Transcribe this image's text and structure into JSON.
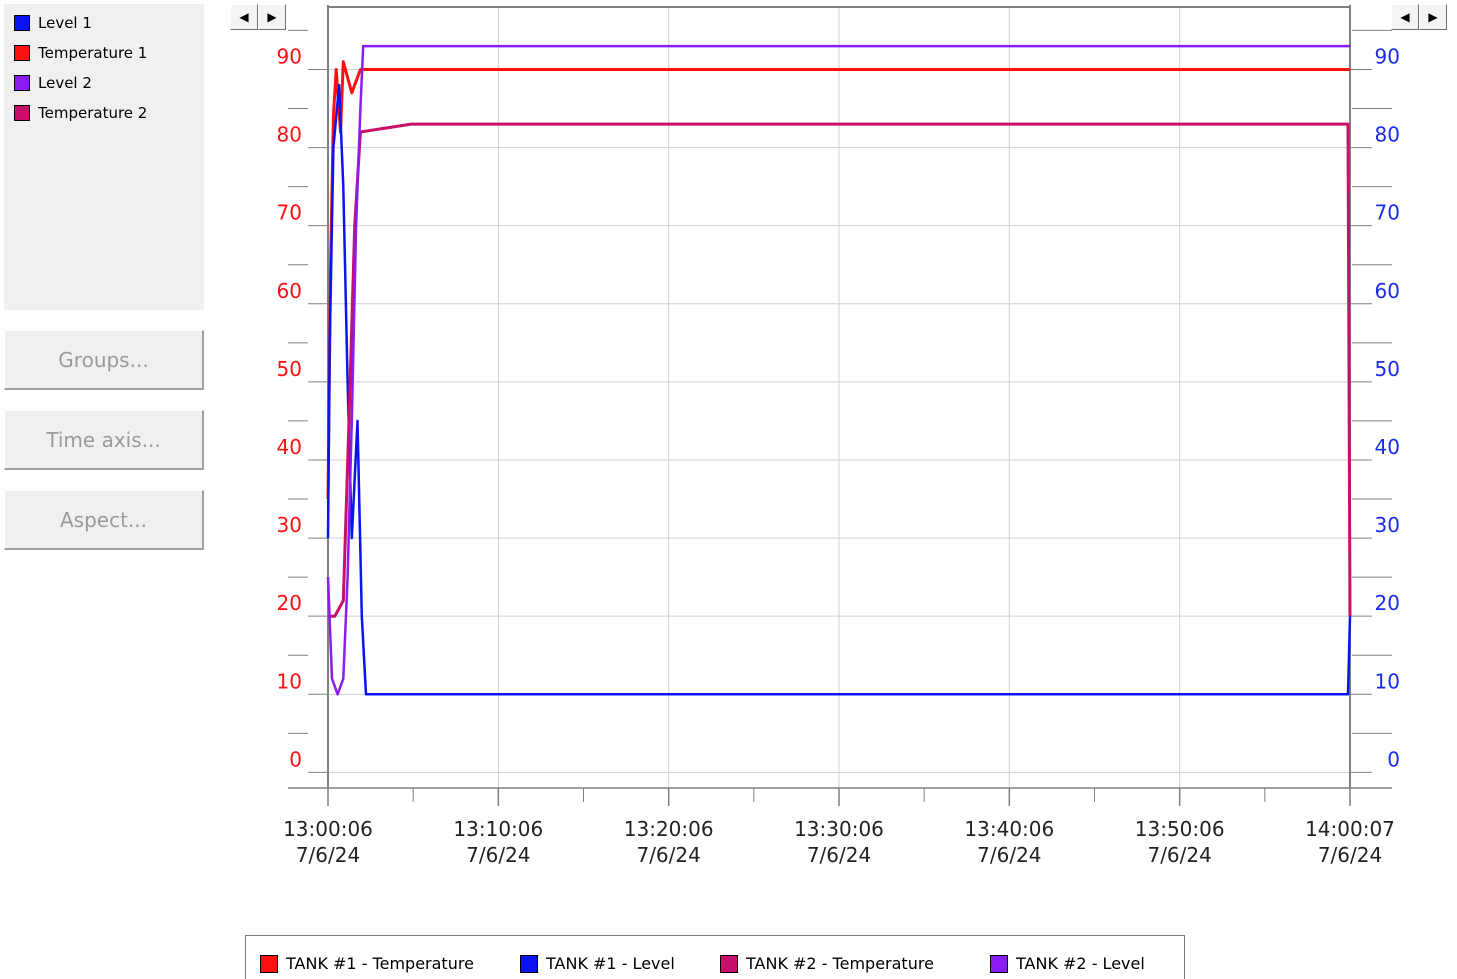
{
  "left_panel": {
    "legend": [
      {
        "label": "Level 1",
        "color": "#0a14f0"
      },
      {
        "label": "Temperature 1",
        "color": "#ff1010"
      },
      {
        "label": "Level 2",
        "color": "#8a1cf0"
      },
      {
        "label": "Temperature 2",
        "color": "#c8106a"
      }
    ],
    "buttons": {
      "groups": "Groups...",
      "time_axis": "Time axis...",
      "aspect": "Aspect..."
    }
  },
  "scroll_buttons": {
    "left": "◀",
    "right": "▶"
  },
  "bottom_legend": [
    {
      "label": "TANK #1 - Temperature",
      "color": "#ff1010"
    },
    {
      "label": "TANK #1 - Level",
      "color": "#0a14f0"
    },
    {
      "label": "TANK #2 - Temperature",
      "color": "#c8106a"
    },
    {
      "label": "TANK #2 - Level",
      "color": "#8a1cf0"
    }
  ],
  "chart_data": {
    "type": "line",
    "grid": true,
    "x_ticks": [
      {
        "time": "13:00:06",
        "date": "7/6/24"
      },
      {
        "time": "13:10:06",
        "date": "7/6/24"
      },
      {
        "time": "13:20:06",
        "date": "7/6/24"
      },
      {
        "time": "13:30:06",
        "date": "7/6/24"
      },
      {
        "time": "13:40:06",
        "date": "7/6/24"
      },
      {
        "time": "13:50:06",
        "date": "7/6/24"
      },
      {
        "time": "14:00:07",
        "date": "7/6/24"
      }
    ],
    "xlim": [
      "13:00:06",
      "14:00:07"
    ],
    "y_left": {
      "ticks": [
        "0",
        "10",
        "20",
        "30",
        "40",
        "50",
        "60",
        "70",
        "80",
        "90"
      ],
      "range": [
        -2,
        98
      ],
      "color": "#ff1010"
    },
    "y_right": {
      "ticks": [
        "0",
        "10",
        "20",
        "30",
        "40",
        "50",
        "60",
        "70",
        "80",
        "90"
      ],
      "range": [
        -2,
        98
      ],
      "color": "#1a2af0"
    },
    "series": [
      {
        "name": "TANK #1 - Temperature",
        "color": "#ff1010",
        "x": [
          "13:00:06",
          "13:00:15",
          "13:00:25",
          "13:00:35",
          "13:00:50",
          "13:01:00",
          "13:01:30",
          "13:02:00",
          "13:05:00",
          "13:15:00",
          "13:25:00",
          "13:35:00",
          "13:45:00",
          "13:55:00",
          "14:00:07"
        ],
        "y": [
          35,
          65,
          84,
          90,
          82,
          91,
          87,
          90,
          90,
          90,
          90,
          90,
          90,
          90,
          90
        ]
      },
      {
        "name": "TANK #1 - Level",
        "color": "#0a14f0",
        "x": [
          "13:00:06",
          "13:00:12",
          "13:00:25",
          "13:00:45",
          "13:01:00",
          "13:01:15",
          "13:01:30",
          "13:01:50",
          "13:02:05",
          "13:02:20",
          "13:05:00",
          "13:15:00",
          "13:25:00",
          "13:35:00",
          "13:45:00",
          "13:55:00",
          "14:00:00",
          "14:00:07"
        ],
        "y": [
          30,
          55,
          80,
          88,
          75,
          50,
          30,
          45,
          20,
          10,
          10,
          10,
          10,
          10,
          10,
          10,
          10,
          20
        ]
      },
      {
        "name": "TANK #2 - Temperature",
        "color": "#c8106a",
        "x": [
          "13:00:06",
          "13:00:30",
          "13:01:00",
          "13:01:20",
          "13:01:40",
          "13:02:00",
          "13:05:00",
          "13:15:00",
          "13:25:00",
          "13:35:00",
          "13:45:00",
          "13:55:00",
          "14:00:00",
          "14:00:07"
        ],
        "y": [
          20,
          20,
          22,
          45,
          70,
          82,
          83,
          83,
          83,
          83,
          83,
          83,
          83,
          20
        ]
      },
      {
        "name": "TANK #2 - Level",
        "color": "#8a1cf0",
        "x": [
          "13:00:06",
          "13:00:20",
          "13:00:40",
          "13:01:00",
          "13:01:15",
          "13:01:30",
          "13:01:45",
          "13:02:00",
          "13:02:10",
          "13:05:00",
          "13:15:00",
          "13:25:00",
          "13:35:00",
          "13:45:00",
          "13:55:00",
          "14:00:07"
        ],
        "y": [
          25,
          12,
          10,
          12,
          25,
          45,
          70,
          85,
          93,
          93,
          93,
          93,
          93,
          93,
          93,
          93
        ]
      }
    ]
  }
}
